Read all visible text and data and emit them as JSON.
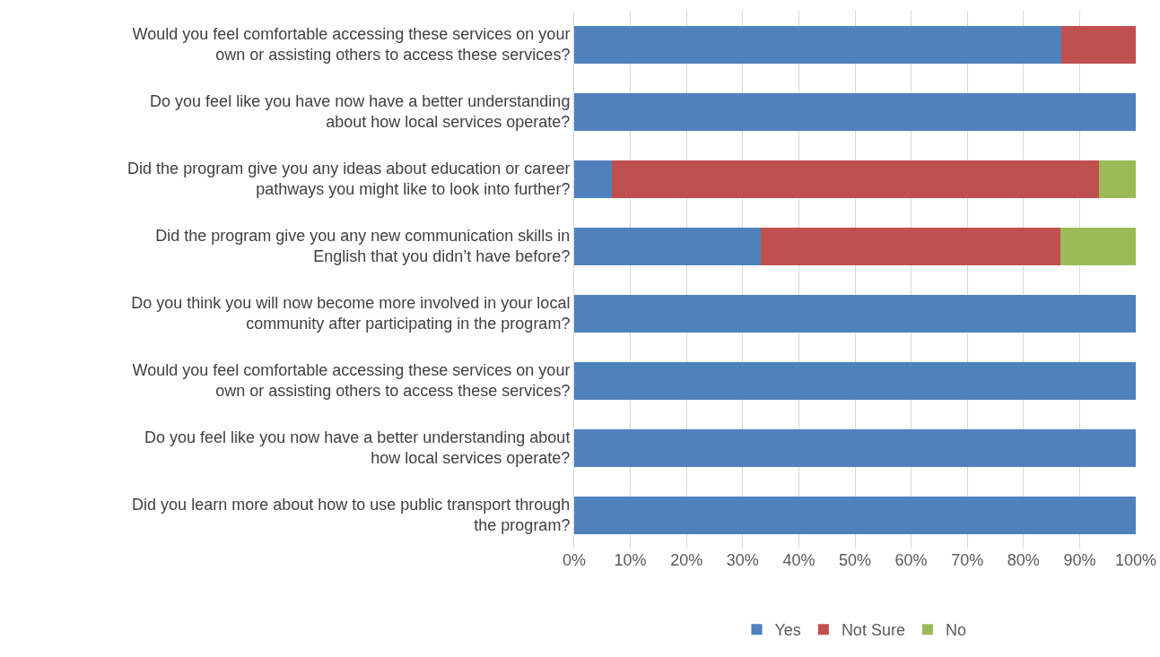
{
  "chart_data": {
    "type": "bar",
    "orientation": "horizontal",
    "stacked": true,
    "categories": [
      "Would you feel comfortable accessing these services on your own or assisting others to access these services?",
      "Do you feel like you have now have a better understanding about how local services operate?",
      "Did the program give you any ideas about education or career pathways you might like to look into further?",
      "Did the program give you any new communication skills in English that you didn’t have before?",
      "Do you think you will now become more involved in your local community after participating in the program?",
      "Would you feel comfortable accessing these services on your own or assisting others to access these services?",
      "Do you feel like you now have a better understanding about how local services operate?",
      "Did you learn more about how to use public transport through the program?"
    ],
    "series": [
      {
        "name": "Yes",
        "color": "#4f81bd",
        "values": [
          86.7,
          100,
          6.7,
          33.3,
          100,
          100,
          100,
          100
        ]
      },
      {
        "name": "Not Sure",
        "color": "#c0504d",
        "values": [
          13.3,
          0,
          86.7,
          53.3,
          0,
          0,
          0,
          0
        ]
      },
      {
        "name": "No",
        "color": "#9bbb59",
        "values": [
          0,
          0,
          6.6,
          13.4,
          0,
          0,
          0,
          0
        ]
      }
    ],
    "xlim": [
      0,
      100
    ],
    "xticks": [
      {
        "value": 0,
        "label": "0%"
      },
      {
        "value": 10,
        "label": "10%"
      },
      {
        "value": 20,
        "label": "20%"
      },
      {
        "value": 30,
        "label": "30%"
      },
      {
        "value": 40,
        "label": "40%"
      },
      {
        "value": 50,
        "label": "50%"
      },
      {
        "value": 60,
        "label": "60%"
      },
      {
        "value": 70,
        "label": "70%"
      },
      {
        "value": 80,
        "label": "80%"
      },
      {
        "value": 90,
        "label": "90%"
      },
      {
        "value": 100,
        "label": "100%"
      }
    ],
    "grid": "x",
    "legend": "bottom"
  }
}
